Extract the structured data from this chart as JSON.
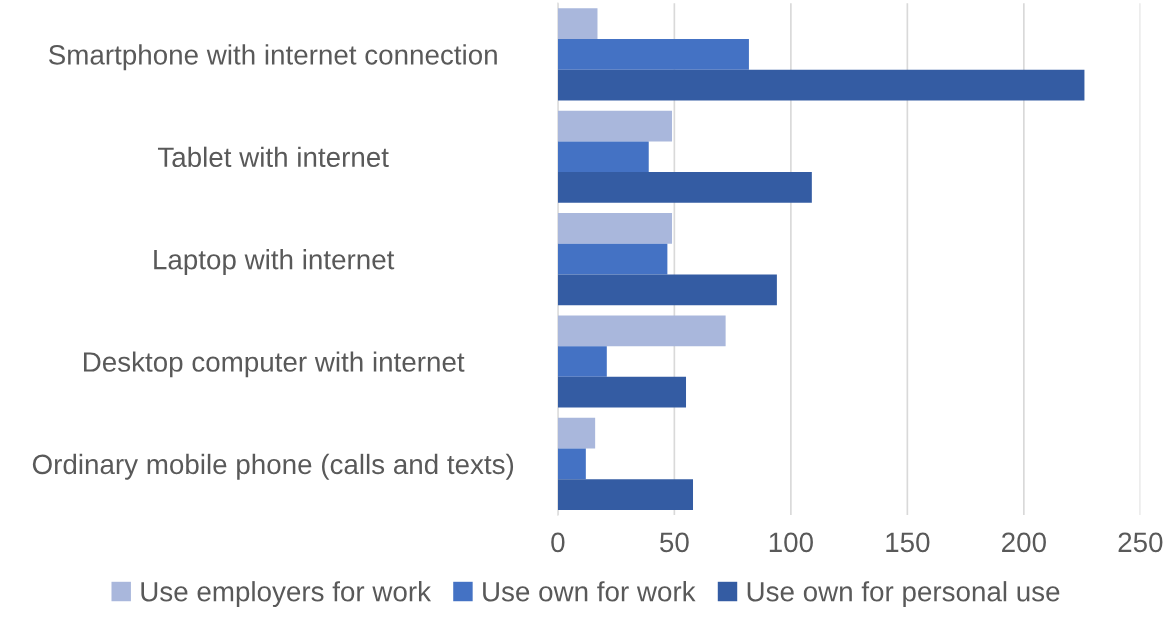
{
  "chart_data": {
    "type": "bar",
    "orientation": "horizontal",
    "categories": [
      "Smartphone with internet connection",
      "Tablet with internet",
      "Laptop with internet",
      "Desktop computer with internet",
      "Ordinary mobile phone (calls and texts)"
    ],
    "series": [
      {
        "name": "Use employers for work",
        "color": "#a9b7dc",
        "values": [
          17,
          49,
          49,
          72,
          16
        ]
      },
      {
        "name": "Use own for work",
        "color": "#4472c4",
        "values": [
          82,
          39,
          47,
          21,
          12
        ]
      },
      {
        "name": "Use own for personal use",
        "color": "#345ca3",
        "values": [
          226,
          109,
          94,
          55,
          58
        ]
      }
    ],
    "xlim": [
      0,
      250
    ],
    "xticks": [
      0,
      50,
      100,
      150,
      200,
      250
    ],
    "grid": "x",
    "legend": "bottom"
  }
}
